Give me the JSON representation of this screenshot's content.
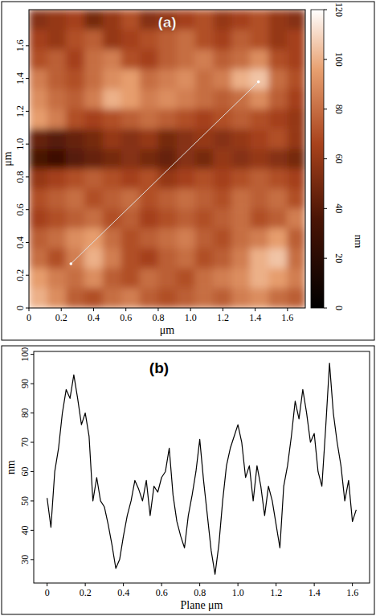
{
  "chart_data": [
    {
      "type": "heatmap",
      "title": "(a)",
      "xlabel": "μm",
      "ylabel": "μm",
      "xlim": [
        0,
        1.71
      ],
      "ylim": [
        0,
        1.82
      ],
      "xticks": [
        0,
        0.2,
        0.4,
        0.6,
        0.8,
        {
          "value": 1,
          "label": "1.0"
        },
        1.2,
        1.4,
        1.6
      ],
      "yticks": [
        0,
        0.2,
        0.4,
        0.6,
        0.8,
        {
          "value": 1,
          "label": "1.0"
        },
        1.2,
        1.4,
        1.6
      ],
      "cells": [
        [
          55,
          60,
          65,
          50,
          60,
          70,
          55,
          60,
          65,
          70,
          60,
          65,
          70,
          60,
          55
        ],
        [
          65,
          60,
          70,
          75,
          60,
          65,
          70,
          75,
          80,
          70,
          65,
          75,
          70,
          60,
          65
        ],
        [
          70,
          75,
          65,
          80,
          85,
          70,
          65,
          75,
          80,
          85,
          75,
          80,
          90,
          70,
          65
        ],
        [
          85,
          75,
          70,
          80,
          90,
          95,
          80,
          85,
          90,
          80,
          85,
          100,
          105,
          80,
          70
        ],
        [
          90,
          80,
          75,
          85,
          100,
          95,
          85,
          90,
          85,
          80,
          75,
          80,
          90,
          75,
          65
        ],
        [
          95,
          85,
          70,
          65,
          70,
          75,
          80,
          75,
          70,
          65,
          70,
          75,
          70,
          65,
          60
        ],
        [
          45,
          40,
          45,
          50,
          60,
          55,
          60,
          50,
          55,
          60,
          55,
          60,
          65,
          70,
          60
        ],
        [
          35,
          30,
          40,
          45,
          50,
          55,
          50,
          45,
          55,
          50,
          60,
          55,
          60,
          55,
          50
        ],
        [
          60,
          65,
          70,
          75,
          70,
          65,
          70,
          60,
          65,
          70,
          65,
          70,
          75,
          70,
          65
        ],
        [
          70,
          75,
          80,
          70,
          75,
          80,
          70,
          75,
          80,
          75,
          70,
          80,
          75,
          80,
          70
        ],
        [
          65,
          70,
          75,
          80,
          70,
          75,
          65,
          70,
          75,
          70,
          75,
          80,
          70,
          75,
          85
        ],
        [
          75,
          80,
          90,
          95,
          80,
          70,
          75,
          80,
          85,
          75,
          70,
          80,
          85,
          95,
          75
        ],
        [
          80,
          70,
          85,
          100,
          85,
          70,
          65,
          75,
          80,
          70,
          75,
          85,
          100,
          105,
          80
        ],
        [
          95,
          85,
          80,
          90,
          75,
          70,
          80,
          75,
          70,
          80,
          85,
          90,
          100,
          95,
          85
        ],
        [
          100,
          90,
          75,
          70,
          80,
          85,
          75,
          70,
          75,
          80,
          75,
          85,
          90,
          80,
          75
        ]
      ],
      "color_range": [
        0,
        120
      ],
      "color_ticks": [
        0,
        20,
        40,
        60,
        80,
        100,
        120
      ],
      "color_label": "nm",
      "profile_line": {
        "start": [
          0.26,
          0.27
        ],
        "end": [
          1.42,
          1.38
        ]
      }
    },
    {
      "type": "line",
      "title": "(b)",
      "xlabel": "Plane μm",
      "ylabel": "nm",
      "x": [
        0,
        0.02,
        0.04,
        0.06,
        0.08,
        0.1,
        0.12,
        0.14,
        0.16,
        0.18,
        0.2,
        0.22,
        0.24,
        0.26,
        0.28,
        0.3,
        0.32,
        0.34,
        0.36,
        0.38,
        0.4,
        0.42,
        0.44,
        0.46,
        0.48,
        0.5,
        0.52,
        0.54,
        0.56,
        0.58,
        0.6,
        0.62,
        0.64,
        0.66,
        0.68,
        0.7,
        0.72,
        0.74,
        0.76,
        0.78,
        0.8,
        0.82,
        0.84,
        0.86,
        0.88,
        0.9,
        0.92,
        0.94,
        0.96,
        0.98,
        1.0,
        1.02,
        1.04,
        1.06,
        1.08,
        1.1,
        1.12,
        1.14,
        1.16,
        1.18,
        1.2,
        1.22,
        1.24,
        1.26,
        1.28,
        1.3,
        1.32,
        1.34,
        1.36,
        1.38,
        1.4,
        1.42,
        1.44,
        1.46,
        1.48,
        1.5,
        1.52,
        1.54,
        1.56,
        1.58,
        1.6,
        1.62
      ],
      "values": [
        51,
        41,
        60,
        68,
        80,
        88,
        85,
        93,
        85,
        76,
        80,
        72,
        50,
        58,
        50,
        48,
        42,
        35,
        27,
        30,
        38,
        45,
        50,
        57,
        54,
        50,
        57,
        45,
        55,
        53,
        58,
        60,
        68,
        52,
        43,
        38,
        34,
        45,
        52,
        60,
        71,
        57,
        45,
        33,
        25,
        35,
        50,
        62,
        68,
        72,
        76,
        70,
        58,
        62,
        50,
        62,
        55,
        45,
        55,
        50,
        42,
        34,
        55,
        62,
        72,
        84,
        78,
        88,
        80,
        70,
        73,
        60,
        55,
        75,
        97,
        80,
        70,
        62,
        50,
        57,
        43,
        47
      ],
      "xlim": [
        -0.07,
        1.69
      ],
      "ylim": [
        22,
        101
      ],
      "xticks": [
        0,
        0.2,
        0.4,
        0.6,
        0.8,
        {
          "value": 1,
          "label": "1.0"
        },
        1.2,
        1.4,
        1.6
      ],
      "yticks": [
        30,
        40,
        50,
        60,
        70,
        80,
        90,
        100
      ],
      "color": "#000000"
    }
  ]
}
